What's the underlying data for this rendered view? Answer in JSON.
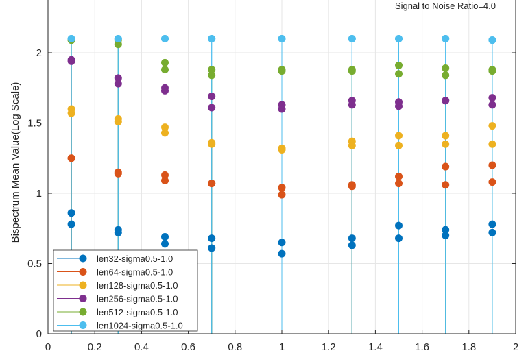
{
  "chart_data": {
    "type": "scatter",
    "subtype": "stem",
    "title": "",
    "annotation": "Signal to Noise Ratio=4.0",
    "xlabel": "",
    "ylabel": "Bispectrum Mean Value(Log Scale)",
    "xlim": [
      0,
      2
    ],
    "ylim": [
      0,
      2.4
    ],
    "xticks": [
      "0",
      "0.2",
      "0.4",
      "0.6",
      "0.8",
      "1",
      "1.2",
      "1.4",
      "1.6",
      "1.8",
      "2"
    ],
    "yticks": [
      "0",
      "0.5",
      "1",
      "1.5",
      "2"
    ],
    "grid": true,
    "legend_position": "bottom-left",
    "x": [
      0.1,
      0.3,
      0.5,
      0.7,
      1.0,
      1.3,
      1.5,
      1.7,
      1.9
    ],
    "series": [
      {
        "name": "len32-sigma0.5-1.0",
        "color": "#0072BD",
        "values_a": [
          0.86,
          0.74,
          0.69,
          0.68,
          0.65,
          0.68,
          0.77,
          0.74,
          0.78
        ],
        "values_b": [
          0.78,
          0.72,
          0.64,
          0.61,
          0.57,
          0.63,
          0.68,
          0.7,
          0.72
        ]
      },
      {
        "name": "len64-sigma0.5-1.0",
        "color": "#D95319",
        "values_a": [
          1.25,
          1.15,
          1.13,
          1.07,
          1.04,
          1.06,
          1.12,
          1.19,
          1.2
        ],
        "values_b": [
          1.25,
          1.14,
          1.09,
          1.07,
          0.99,
          1.05,
          1.07,
          1.06,
          1.08
        ]
      },
      {
        "name": "len128-sigma0.5-1.0",
        "color": "#EDB120",
        "values_a": [
          1.6,
          1.53,
          1.47,
          1.36,
          1.32,
          1.37,
          1.41,
          1.41,
          1.48
        ],
        "values_b": [
          1.57,
          1.51,
          1.43,
          1.35,
          1.31,
          1.34,
          1.34,
          1.35,
          1.35
        ]
      },
      {
        "name": "len256-sigma0.5-1.0",
        "color": "#7E2F8E",
        "values_a": [
          1.95,
          1.82,
          1.75,
          1.69,
          1.63,
          1.66,
          1.65,
          1.66,
          1.68
        ],
        "values_b": [
          1.94,
          1.78,
          1.73,
          1.61,
          1.6,
          1.63,
          1.62,
          1.66,
          1.63
        ]
      },
      {
        "name": "len512-sigma0.5-1.0",
        "color": "#77AC30",
        "values_a": [
          2.09,
          2.09,
          1.93,
          1.88,
          1.88,
          1.88,
          1.91,
          1.89,
          1.88
        ],
        "values_b": [
          2.09,
          2.06,
          1.88,
          1.84,
          1.87,
          1.87,
          1.85,
          1.84,
          1.87
        ]
      },
      {
        "name": "len1024-sigma0.5-1.0",
        "color": "#4DBEEE",
        "values_a": [
          2.1,
          2.1,
          2.1,
          2.1,
          2.1,
          2.1,
          2.1,
          2.1,
          2.09
        ],
        "values_b": [
          2.1,
          2.1,
          2.1,
          2.1,
          2.1,
          2.1,
          2.1,
          2.1,
          2.09
        ]
      }
    ]
  }
}
